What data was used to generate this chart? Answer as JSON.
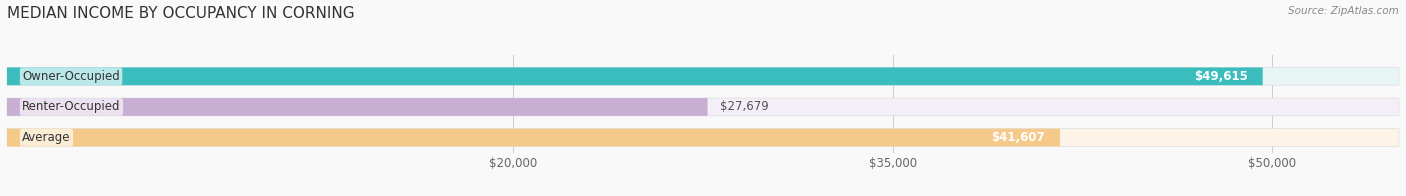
{
  "title": "MEDIAN INCOME BY OCCUPANCY IN CORNING",
  "source": "Source: ZipAtlas.com",
  "categories": [
    "Owner-Occupied",
    "Renter-Occupied",
    "Average"
  ],
  "values": [
    49615,
    27679,
    41607
  ],
  "labels": [
    "$49,615",
    "$27,679",
    "$41,607"
  ],
  "bar_colors": [
    "#3bbdbd",
    "#c9aed4",
    "#f5c98a"
  ],
  "bar_bg_colors": [
    "#e8f5f5",
    "#f3eef7",
    "#fdf3e7"
  ],
  "x_min": 0,
  "x_max": 55000,
  "x_ticks": [
    20000,
    35000,
    50000
  ],
  "x_tick_labels": [
    "$20,000",
    "$35,000",
    "$50,000"
  ],
  "background_color": "#f9f9f9",
  "title_fontsize": 11,
  "label_fontsize": 8.5,
  "tick_fontsize": 8.5,
  "source_fontsize": 7.5
}
